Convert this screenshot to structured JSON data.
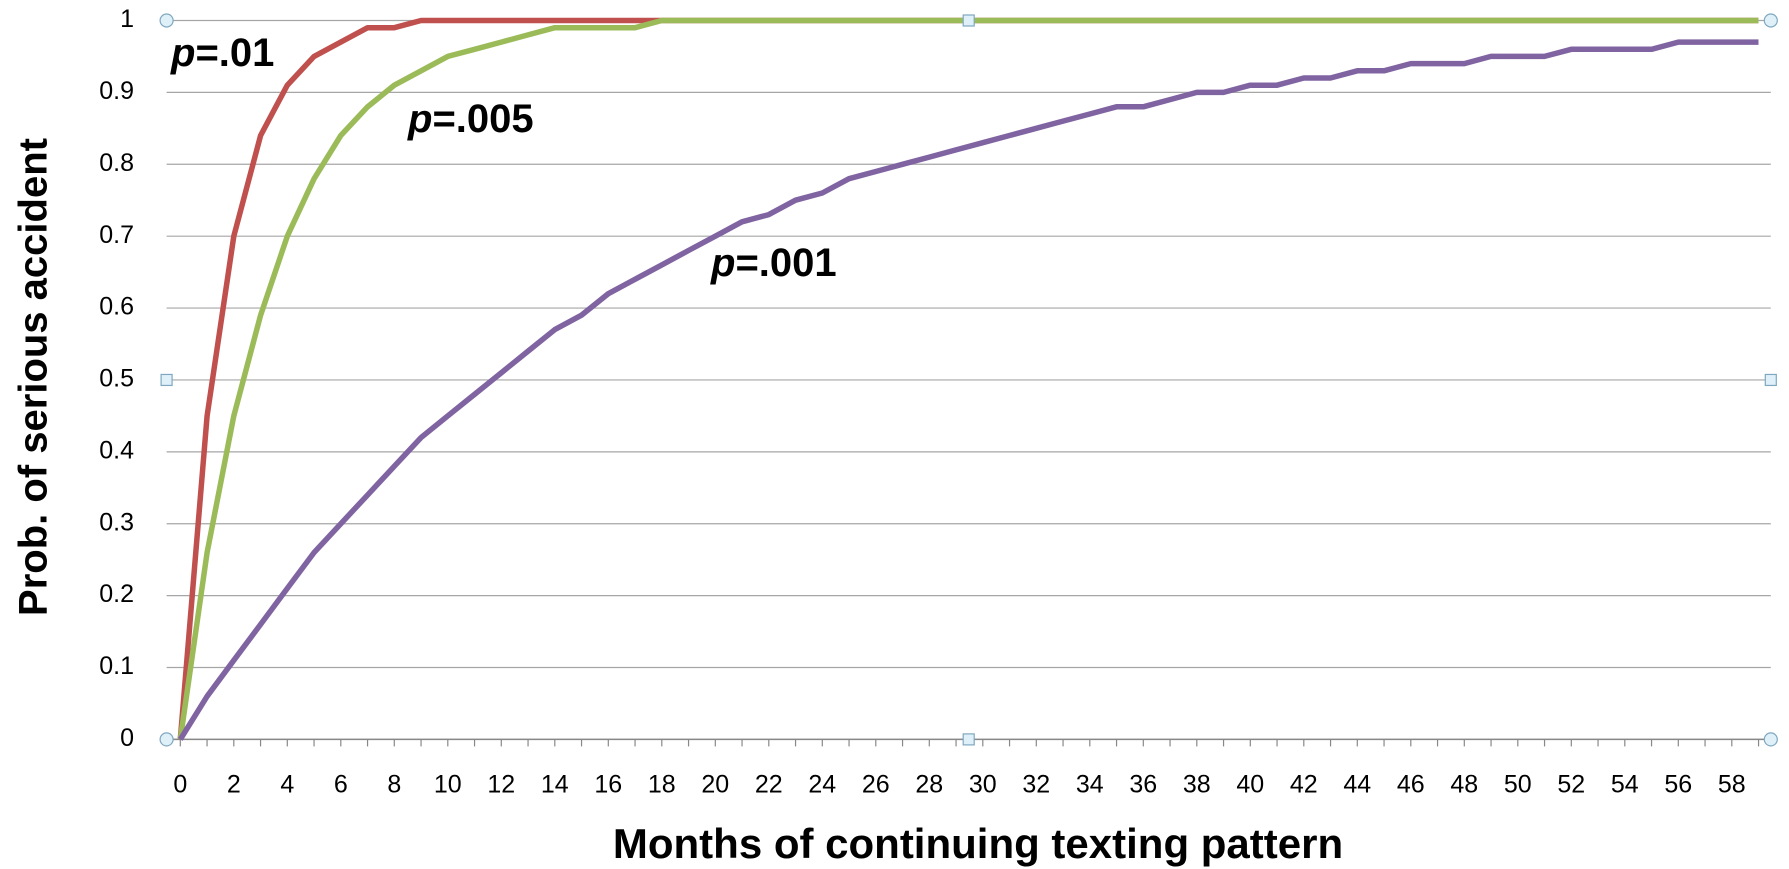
{
  "chart_data": {
    "type": "line",
    "x_label": "Months of continuing texting pattern",
    "y_label": "Prob. of serious accident",
    "categories": [
      0,
      null,
      2,
      null,
      4,
      null,
      6,
      null,
      8,
      null,
      10,
      null,
      12,
      null,
      14,
      null,
      16,
      null,
      18,
      null,
      20,
      null,
      22,
      null,
      24,
      null,
      26,
      null,
      28,
      null,
      30,
      null,
      32,
      null,
      34,
      null,
      36,
      null,
      38,
      null,
      40,
      null,
      42,
      null,
      44,
      null,
      46,
      null,
      48,
      null,
      50,
      null,
      52,
      null,
      54,
      null,
      56,
      null,
      58,
      null
    ],
    "series": [
      {
        "name": "p=.01",
        "color": "#c0504d",
        "values": [
          0,
          0.45,
          0.7,
          0.84,
          0.91,
          0.95,
          0.97,
          0.99,
          0.99,
          1,
          1,
          1,
          1,
          1,
          1,
          1,
          1,
          1,
          1,
          1,
          1,
          1,
          1,
          1,
          1,
          1,
          1,
          1,
          1,
          1,
          1,
          1,
          1,
          1,
          1,
          1,
          1,
          1,
          1,
          1,
          1,
          1,
          1,
          1,
          1,
          1,
          1,
          1,
          1,
          1,
          1,
          1,
          1,
          1,
          1,
          1,
          1,
          1,
          1,
          1
        ]
      },
      {
        "name": "p=.005",
        "color": "#9bbb59",
        "values": [
          0,
          0.26,
          0.45,
          0.59,
          0.7,
          0.78,
          0.84,
          0.88,
          0.91,
          0.93,
          0.95,
          0.96,
          0.97,
          0.98,
          0.99,
          0.99,
          0.99,
          0.99,
          1,
          1,
          1,
          1,
          1,
          1,
          1,
          1,
          1,
          1,
          1,
          1,
          1,
          1,
          1,
          1,
          1,
          1,
          1,
          1,
          1,
          1,
          1,
          1,
          1,
          1,
          1,
          1,
          1,
          1,
          1,
          1,
          1,
          1,
          1,
          1,
          1,
          1,
          1,
          1,
          1,
          1
        ]
      },
      {
        "name": "p=.001",
        "color": "#8064a2",
        "values": [
          0,
          0.06,
          0.11,
          0.16,
          0.21,
          0.26,
          0.3,
          0.34,
          0.38,
          0.42,
          0.45,
          0.48,
          0.51,
          0.54,
          0.57,
          0.59,
          0.62,
          0.64,
          0.66,
          0.68,
          0.7,
          0.72,
          0.73,
          0.75,
          0.76,
          0.78,
          0.79,
          0.8,
          0.81,
          0.82,
          0.83,
          0.84,
          0.85,
          0.86,
          0.87,
          0.88,
          0.88,
          0.89,
          0.9,
          0.9,
          0.91,
          0.91,
          0.92,
          0.92,
          0.93,
          0.93,
          0.94,
          0.94,
          0.94,
          0.95,
          0.95,
          0.95,
          0.96,
          0.96,
          0.96,
          0.96,
          0.97,
          0.97,
          0.97,
          0.97
        ]
      }
    ],
    "ylim": [
      0,
      1
    ],
    "yticks": [
      0,
      0.1,
      0.2,
      0.3,
      0.4,
      0.5,
      0.6,
      0.7,
      0.8,
      0.9,
      1
    ],
    "grid": true
  }
}
